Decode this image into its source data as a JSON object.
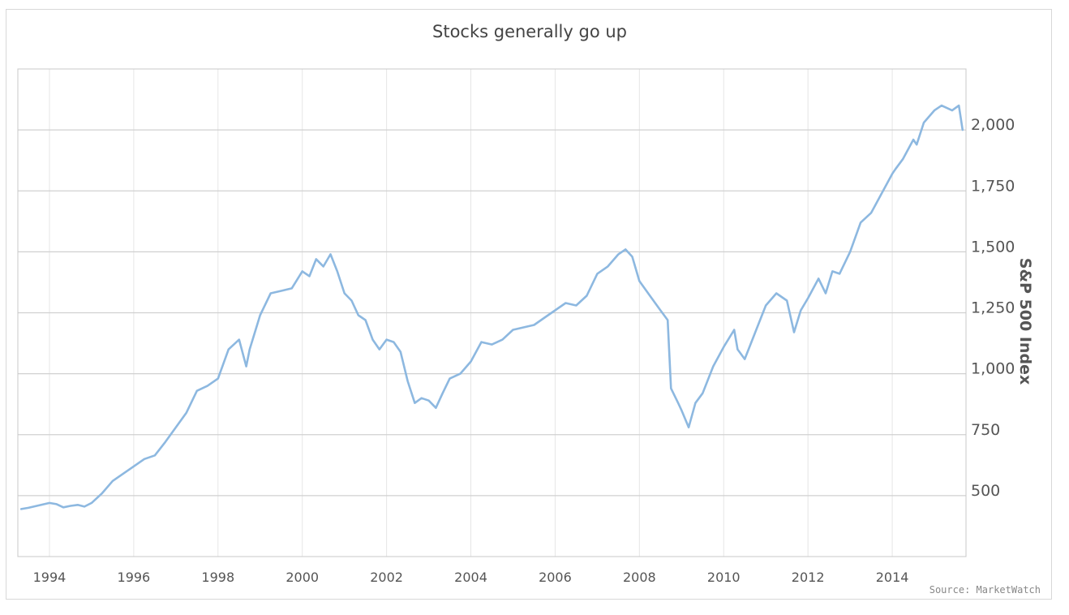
{
  "chart_data": {
    "type": "line",
    "title": "Stocks generally go up",
    "ylabel": "S&P 500 Index",
    "xlabel": "",
    "source": "Source: MarketWatch",
    "x_range": [
      1993.25,
      2015.75
    ],
    "ylim": [
      250,
      2250
    ],
    "x_ticks": [
      1994,
      1996,
      1998,
      2000,
      2002,
      2004,
      2006,
      2008,
      2010,
      2012,
      2014
    ],
    "x_tick_labels": [
      "1994",
      "1996",
      "1998",
      "2000",
      "2002",
      "2004",
      "2006",
      "2008",
      "2010",
      "2012",
      "2014"
    ],
    "y_ticks": [
      500,
      750,
      1000,
      1250,
      1500,
      1750,
      2000
    ],
    "y_tick_labels": [
      "500",
      "750",
      "1,000",
      "1,250",
      "1,500",
      "1,750",
      "2,000"
    ],
    "grid": true,
    "legend": "none",
    "colors": {
      "line": "#8db8e0",
      "grid": "#d0d0d0",
      "vgrid": "#e6e6e6"
    },
    "series": [
      {
        "name": "",
        "x": [
          1993.33,
          1993.5,
          1993.75,
          1994.0,
          1994.17,
          1994.33,
          1994.5,
          1994.67,
          1994.83,
          1995.0,
          1995.25,
          1995.5,
          1995.75,
          1996.0,
          1996.25,
          1996.5,
          1996.75,
          1997.0,
          1997.25,
          1997.5,
          1997.75,
          1998.0,
          1998.25,
          1998.5,
          1998.67,
          1998.75,
          1999.0,
          1999.25,
          1999.5,
          1999.75,
          2000.0,
          2000.17,
          2000.33,
          2000.5,
          2000.67,
          2000.83,
          2001.0,
          2001.17,
          2001.33,
          2001.5,
          2001.67,
          2001.83,
          2002.0,
          2002.17,
          2002.33,
          2002.5,
          2002.67,
          2002.83,
          2003.0,
          2003.17,
          2003.33,
          2003.5,
          2003.75,
          2004.0,
          2004.25,
          2004.5,
          2004.75,
          2005.0,
          2005.25,
          2005.5,
          2005.75,
          2006.0,
          2006.25,
          2006.5,
          2006.75,
          2007.0,
          2007.25,
          2007.5,
          2007.67,
          2007.83,
          2008.0,
          2008.25,
          2008.5,
          2008.67,
          2008.75,
          2008.92,
          2009.0,
          2009.17,
          2009.33,
          2009.5,
          2009.75,
          2010.0,
          2010.25,
          2010.33,
          2010.5,
          2010.75,
          2011.0,
          2011.25,
          2011.5,
          2011.67,
          2011.83,
          2012.0,
          2012.25,
          2012.42,
          2012.58,
          2012.75,
          2013.0,
          2013.25,
          2013.5,
          2013.75,
          2014.0,
          2014.08,
          2014.25,
          2014.5,
          2014.58,
          2014.75,
          2015.0,
          2015.17,
          2015.42,
          2015.58,
          2015.67
        ],
        "values": [
          445,
          450,
          460,
          470,
          465,
          452,
          458,
          462,
          455,
          470,
          510,
          560,
          590,
          620,
          650,
          665,
          720,
          780,
          840,
          930,
          950,
          980,
          1100,
          1140,
          1030,
          1100,
          1240,
          1330,
          1340,
          1350,
          1420,
          1400,
          1470,
          1440,
          1490,
          1420,
          1330,
          1300,
          1240,
          1220,
          1140,
          1100,
          1140,
          1130,
          1090,
          970,
          880,
          900,
          890,
          860,
          920,
          980,
          1000,
          1050,
          1130,
          1120,
          1140,
          1180,
          1190,
          1200,
          1230,
          1260,
          1290,
          1280,
          1320,
          1410,
          1440,
          1490,
          1510,
          1480,
          1380,
          1320,
          1260,
          1220,
          940,
          880,
          850,
          780,
          880,
          920,
          1030,
          1110,
          1180,
          1100,
          1060,
          1170,
          1280,
          1330,
          1300,
          1170,
          1260,
          1310,
          1390,
          1330,
          1420,
          1410,
          1500,
          1620,
          1660,
          1740,
          1820,
          1840,
          1880,
          1960,
          1940,
          2030,
          2080,
          2100,
          2080,
          2100,
          2000
        ]
      }
    ]
  }
}
